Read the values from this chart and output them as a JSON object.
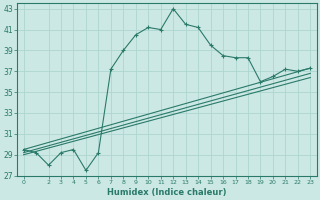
{
  "title": "",
  "xlabel": "Humidex (Indice chaleur)",
  "ylabel": "",
  "background_color": "#cce8e4",
  "grid_color": "#aed6d0",
  "line_color": "#2a7a6a",
  "xlim": [
    -0.5,
    23.5
  ],
  "ylim": [
    27,
    43.5
  ],
  "yticks": [
    27,
    29,
    31,
    33,
    35,
    37,
    39,
    41,
    43
  ],
  "xticks": [
    0,
    2,
    3,
    4,
    5,
    6,
    7,
    8,
    9,
    10,
    11,
    12,
    13,
    14,
    15,
    16,
    17,
    18,
    19,
    20,
    21,
    22,
    23
  ],
  "main_curve": {
    "x": [
      0,
      1,
      2,
      3,
      4,
      5,
      6,
      7,
      8,
      9,
      10,
      11,
      12,
      13,
      14,
      15,
      16,
      17,
      18,
      19,
      20,
      21,
      22,
      23
    ],
    "y": [
      29.5,
      29.2,
      28.0,
      29.2,
      29.5,
      27.5,
      29.2,
      37.2,
      39.0,
      40.5,
      41.2,
      41.0,
      43.0,
      41.5,
      41.2,
      39.5,
      38.5,
      38.3,
      38.3,
      36.0,
      36.5,
      37.2,
      37.0,
      37.3
    ]
  },
  "linear_lines": [
    {
      "x0": 0,
      "y0": 29.5,
      "x1": 23,
      "y1": 37.3
    },
    {
      "x0": 0,
      "y0": 29.2,
      "x1": 23,
      "y1": 36.8
    },
    {
      "x0": 0,
      "y0": 29.0,
      "x1": 23,
      "y1": 36.4
    }
  ]
}
